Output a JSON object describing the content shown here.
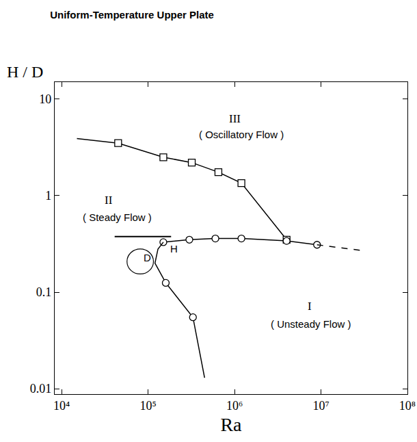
{
  "chart_data": {
    "type": "line",
    "title": "Uniform-Temperature Upper Plate",
    "xlabel": "Ra",
    "ylabel": "H / D",
    "log": true,
    "grid": false,
    "xlim": [
      8300,
      100000000
    ],
    "ylim": [
      0.0088,
      15
    ],
    "xticks": [
      {
        "value": 10000,
        "label": "10⁴"
      },
      {
        "value": 100000,
        "label": "10⁵"
      },
      {
        "value": 1000000,
        "label": "10⁶"
      },
      {
        "value": 10000000,
        "label": "10⁷"
      },
      {
        "value": 100000000,
        "label": "10⁸"
      }
    ],
    "yticks": [
      0.01,
      0.1,
      1,
      10
    ],
    "series": [
      {
        "color": "#000000",
        "marker": "none",
        "line_style": "solid",
        "x": [
          15000,
          45000
        ],
        "values": [
          3.9,
          3.5
        ]
      },
      {
        "color": "#000000",
        "marker": "square",
        "line_style": "solid",
        "x": [
          45000,
          150000,
          320000,
          650000,
          1200000,
          4000000
        ],
        "values": [
          3.5,
          2.5,
          2.2,
          1.75,
          1.35,
          0.35
        ]
      },
      {
        "color": "#000000",
        "marker": "circle",
        "line_style": "solid",
        "x": [
          150000,
          300000,
          600000,
          1200000,
          4000000,
          9000000
        ],
        "values": [
          0.33,
          0.35,
          0.36,
          0.36,
          0.34,
          0.31
        ]
      },
      {
        "color": "#000000",
        "marker": "none",
        "line_style": "dash",
        "x": [
          9000000,
          30000000
        ],
        "values": [
          0.31,
          0.27
        ]
      },
      {
        "color": "#000000",
        "marker": "none",
        "line_style": "solid",
        "x": [
          450000,
          330000,
          160000,
          120000,
          130000,
          150000
        ],
        "values": [
          0.013,
          0.055,
          0.125,
          0.2,
          0.28,
          0.33
        ]
      },
      {
        "color": "#000000",
        "marker": "circle",
        "line_style": "none",
        "x": [
          160000,
          330000
        ],
        "values": [
          0.125,
          0.055
        ]
      }
    ],
    "annotations": [
      {
        "text": "II",
        "x": 35000,
        "y": 0.9,
        "circled": true
      },
      {
        "text": "( Steady Flow )",
        "x": 44000,
        "y": 0.6
      },
      {
        "text": "III",
        "x": 1000000,
        "y": 6.3,
        "circled": true
      },
      {
        "text": "( Oscillatory Flow )",
        "x": 1200000,
        "y": 4.3
      },
      {
        "text": "I",
        "x": 7400000,
        "y": 0.072,
        "circled": true
      },
      {
        "text": "( Unsteady Flow )",
        "x": 7700000,
        "y": 0.047
      },
      {
        "text": "H",
        "x": 200000,
        "y": 0.28
      },
      {
        "text": "D",
        "x": 98000,
        "y": 0.23
      }
    ]
  }
}
